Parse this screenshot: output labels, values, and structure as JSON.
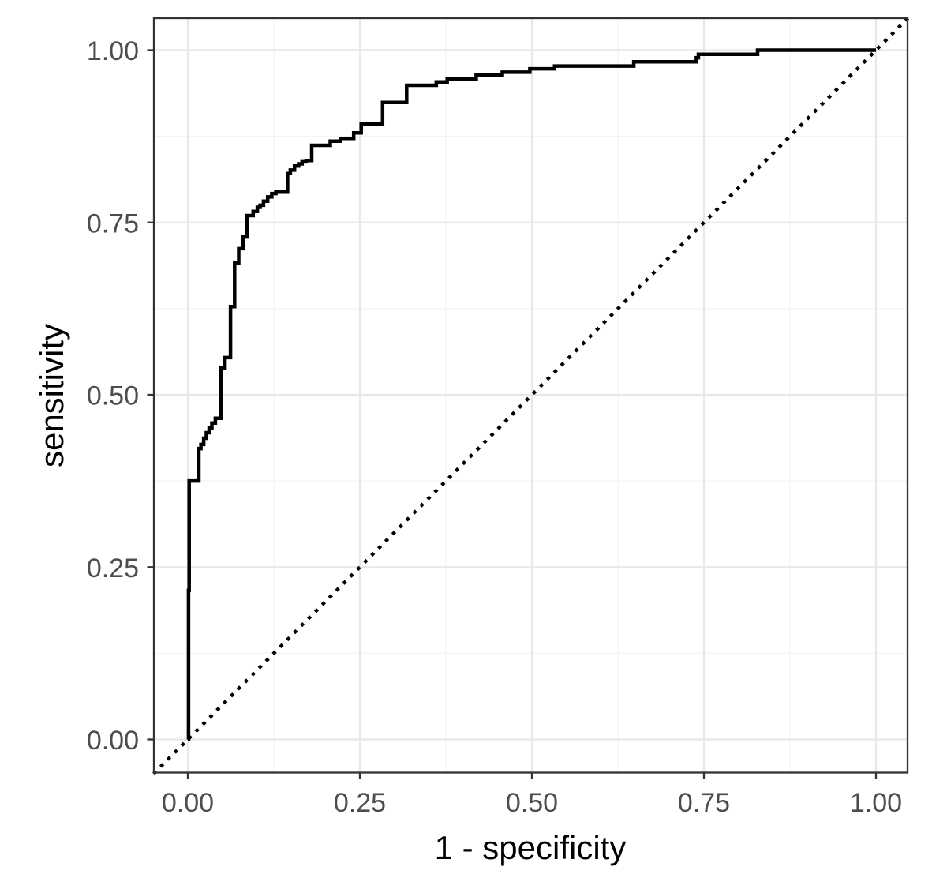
{
  "chart_data": {
    "type": "line",
    "subtype": "roc-step-curve",
    "xlabel": "1 - specificity",
    "ylabel": "sensitivity",
    "xlim": [
      -0.05,
      1.046
    ],
    "ylim": [
      -0.048,
      1.046
    ],
    "grid": {
      "major": true,
      "minor": true
    },
    "legend": "none",
    "x_ticks": {
      "values": [
        0,
        0.25,
        0.5,
        0.75,
        1
      ],
      "labels": [
        "0.00",
        "0.25",
        "0.50",
        "0.75",
        "1.00"
      ]
    },
    "y_ticks": {
      "values": [
        0,
        0.25,
        0.5,
        0.75,
        1
      ],
      "labels": [
        "0.00",
        "0.25",
        "0.50",
        "0.75",
        "1.00"
      ]
    },
    "minor_tick_values": [
      0.125,
      0.375,
      0.625,
      0.875
    ],
    "series": [
      {
        "name": "roc-curve",
        "style": "solid-step",
        "color": "#000000",
        "points": [
          [
            0.0,
            0.0
          ],
          [
            0.001,
            0.0
          ],
          [
            0.001,
            0.216
          ],
          [
            0.002,
            0.216
          ],
          [
            0.002,
            0.375
          ],
          [
            0.016,
            0.375
          ],
          [
            0.016,
            0.422
          ],
          [
            0.019,
            0.422
          ],
          [
            0.019,
            0.428
          ],
          [
            0.023,
            0.428
          ],
          [
            0.023,
            0.437
          ],
          [
            0.027,
            0.437
          ],
          [
            0.027,
            0.445
          ],
          [
            0.031,
            0.445
          ],
          [
            0.031,
            0.452
          ],
          [
            0.035,
            0.452
          ],
          [
            0.035,
            0.459
          ],
          [
            0.04,
            0.459
          ],
          [
            0.04,
            0.466
          ],
          [
            0.048,
            0.466
          ],
          [
            0.048,
            0.539
          ],
          [
            0.054,
            0.539
          ],
          [
            0.054,
            0.554
          ],
          [
            0.062,
            0.554
          ],
          [
            0.062,
            0.628
          ],
          [
            0.068,
            0.628
          ],
          [
            0.068,
            0.691
          ],
          [
            0.074,
            0.691
          ],
          [
            0.074,
            0.712
          ],
          [
            0.08,
            0.712
          ],
          [
            0.08,
            0.729
          ],
          [
            0.086,
            0.729
          ],
          [
            0.086,
            0.76
          ],
          [
            0.095,
            0.76
          ],
          [
            0.095,
            0.766
          ],
          [
            0.101,
            0.766
          ],
          [
            0.101,
            0.772
          ],
          [
            0.105,
            0.772
          ],
          [
            0.105,
            0.775
          ],
          [
            0.11,
            0.775
          ],
          [
            0.11,
            0.781
          ],
          [
            0.116,
            0.781
          ],
          [
            0.116,
            0.787
          ],
          [
            0.122,
            0.787
          ],
          [
            0.122,
            0.792
          ],
          [
            0.128,
            0.792
          ],
          [
            0.128,
            0.794
          ],
          [
            0.145,
            0.794
          ],
          [
            0.145,
            0.821
          ],
          [
            0.149,
            0.821
          ],
          [
            0.149,
            0.826
          ],
          [
            0.155,
            0.826
          ],
          [
            0.155,
            0.832
          ],
          [
            0.161,
            0.832
          ],
          [
            0.161,
            0.835
          ],
          [
            0.166,
            0.835
          ],
          [
            0.166,
            0.838
          ],
          [
            0.172,
            0.838
          ],
          [
            0.172,
            0.84
          ],
          [
            0.18,
            0.84
          ],
          [
            0.18,
            0.862
          ],
          [
            0.207,
            0.862
          ],
          [
            0.207,
            0.868
          ],
          [
            0.222,
            0.868
          ],
          [
            0.222,
            0.872
          ],
          [
            0.241,
            0.872
          ],
          [
            0.241,
            0.88
          ],
          [
            0.252,
            0.88
          ],
          [
            0.252,
            0.893
          ],
          [
            0.283,
            0.893
          ],
          [
            0.283,
            0.924
          ],
          [
            0.318,
            0.924
          ],
          [
            0.318,
            0.949
          ],
          [
            0.361,
            0.949
          ],
          [
            0.361,
            0.954
          ],
          [
            0.377,
            0.954
          ],
          [
            0.377,
            0.958
          ],
          [
            0.419,
            0.958
          ],
          [
            0.419,
            0.964
          ],
          [
            0.457,
            0.964
          ],
          [
            0.457,
            0.968
          ],
          [
            0.497,
            0.968
          ],
          [
            0.497,
            0.973
          ],
          [
            0.533,
            0.973
          ],
          [
            0.533,
            0.977
          ],
          [
            0.648,
            0.977
          ],
          [
            0.648,
            0.983
          ],
          [
            0.739,
            0.983
          ],
          [
            0.739,
            0.989
          ],
          [
            0.742,
            0.989
          ],
          [
            0.742,
            0.994
          ],
          [
            0.828,
            0.994
          ],
          [
            0.828,
            1.0
          ],
          [
            1.0,
            1.0
          ]
        ]
      },
      {
        "name": "chance-diagonal",
        "style": "dotted",
        "color": "#000000",
        "points": [
          [
            -0.048,
            -0.048
          ],
          [
            1.046,
            1.046
          ]
        ]
      }
    ],
    "colors": {
      "background": "#ffffff",
      "panel_border": "#333333",
      "grid_major": "#e8e8e8",
      "grid_minor": "#f3f3f3",
      "tick_mark": "#333333",
      "tick_text": "#4d4d4d",
      "axis_title_text": "#000000"
    }
  }
}
